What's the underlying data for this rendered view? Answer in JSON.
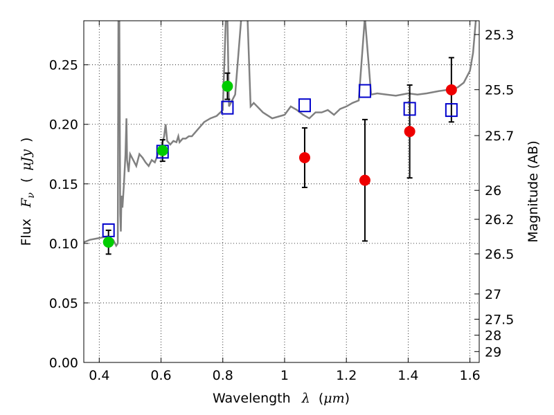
{
  "chart_data": {
    "type": "scatter",
    "xlabel": {
      "text": "Wavelength",
      "symbol": "λ",
      "unit_open": "(",
      "unit": "μm",
      "unit_close": ")"
    },
    "ylabel": {
      "text": "Flux",
      "symbol": "F",
      "subscript": "ν",
      "unit_open": "(",
      "unit": "μJy",
      "unit_close": ")"
    },
    "y2label": "Magnitude (AB)",
    "xlim": [
      0.35,
      1.63
    ],
    "ylim": [
      0.0,
      0.287
    ],
    "grid": true,
    "x_ticks": [
      {
        "value": 0.4,
        "label": "0.4"
      },
      {
        "value": 0.6,
        "label": "0.6"
      },
      {
        "value": 0.8,
        "label": "0.8"
      },
      {
        "value": 1.0,
        "label": "1"
      },
      {
        "value": 1.2,
        "label": "1.2"
      },
      {
        "value": 1.4,
        "label": "1.4"
      },
      {
        "value": 1.6,
        "label": "1.6"
      }
    ],
    "y_ticks": [
      {
        "value": 0.0,
        "label": "0.00"
      },
      {
        "value": 0.05,
        "label": "0.05"
      },
      {
        "value": 0.1,
        "label": "0.10"
      },
      {
        "value": 0.15,
        "label": "0.15"
      },
      {
        "value": 0.2,
        "label": "0.20"
      },
      {
        "value": 0.25,
        "label": "0.25"
      }
    ],
    "y2_ticks": [
      {
        "value": 25.3,
        "label": "25.3"
      },
      {
        "value": 25.5,
        "label": "25.5"
      },
      {
        "value": 25.7,
        "label": "25.7"
      },
      {
        "value": 26.0,
        "label": "26"
      },
      {
        "value": 26.2,
        "label": "26.2"
      },
      {
        "value": 26.5,
        "label": "26.5"
      },
      {
        "value": 27.0,
        "label": "27"
      },
      {
        "value": 27.5,
        "label": "27.5"
      },
      {
        "value": 28.0,
        "label": "28"
      },
      {
        "value": 29.0,
        "label": "29"
      }
    ],
    "colors": {
      "spectrum": "#808080",
      "model_squares": "#0000cc",
      "detected": "#00cc00",
      "measured": "#ee0000",
      "errorbar": "#000000",
      "grid": "#000000"
    },
    "spectrum": {
      "x": [
        0.35,
        0.37,
        0.39,
        0.41,
        0.43,
        0.445,
        0.455,
        0.46,
        0.462,
        0.465,
        0.468,
        0.47,
        0.472,
        0.475,
        0.48,
        0.485,
        0.488,
        0.49,
        0.495,
        0.5,
        0.51,
        0.52,
        0.53,
        0.54,
        0.55,
        0.56,
        0.57,
        0.58,
        0.59,
        0.6,
        0.61,
        0.615,
        0.62,
        0.63,
        0.64,
        0.65,
        0.656,
        0.66,
        0.67,
        0.68,
        0.69,
        0.7,
        0.72,
        0.74,
        0.76,
        0.78,
        0.8,
        0.81,
        0.815,
        0.82,
        0.83,
        0.84,
        0.86,
        0.88,
        0.89,
        0.9,
        0.93,
        0.96,
        1.0,
        1.02,
        1.04,
        1.06,
        1.08,
        1.1,
        1.12,
        1.14,
        1.16,
        1.18,
        1.2,
        1.22,
        1.24,
        1.26,
        1.28,
        1.3,
        1.33,
        1.36,
        1.4,
        1.43,
        1.46,
        1.5,
        1.53,
        1.56,
        1.58,
        1.6,
        1.61,
        1.62,
        1.63
      ],
      "y": [
        0.101,
        0.103,
        0.104,
        0.105,
        0.106,
        0.103,
        0.098,
        0.1,
        0.29,
        0.29,
        0.125,
        0.11,
        0.14,
        0.13,
        0.15,
        0.175,
        0.205,
        0.17,
        0.16,
        0.175,
        0.17,
        0.165,
        0.175,
        0.172,
        0.168,
        0.165,
        0.17,
        0.168,
        0.175,
        0.18,
        0.19,
        0.2,
        0.186,
        0.183,
        0.186,
        0.185,
        0.19,
        0.185,
        0.188,
        0.188,
        0.19,
        0.19,
        0.196,
        0.202,
        0.205,
        0.207,
        0.212,
        0.29,
        0.29,
        0.215,
        0.22,
        0.225,
        0.29,
        0.29,
        0.215,
        0.218,
        0.21,
        0.205,
        0.208,
        0.215,
        0.212,
        0.208,
        0.205,
        0.21,
        0.21,
        0.212,
        0.208,
        0.213,
        0.215,
        0.218,
        0.22,
        0.29,
        0.225,
        0.226,
        0.225,
        0.224,
        0.226,
        0.225,
        0.226,
        0.228,
        0.229,
        0.231,
        0.235,
        0.245,
        0.26,
        0.29,
        0.29
      ]
    },
    "series": [
      {
        "marker": "square",
        "x": [
          0.43,
          0.605,
          0.815,
          1.065,
          1.26,
          1.405,
          1.54
        ],
        "y": [
          0.111,
          0.177,
          0.214,
          0.216,
          0.228,
          0.213,
          0.212
        ]
      },
      {
        "marker": "circle",
        "x": [
          0.43,
          0.605,
          0.815
        ],
        "y": [
          0.101,
          0.178,
          0.232
        ],
        "yerr": [
          0.01,
          0.009,
          0.011
        ]
      },
      {
        "marker": "circle",
        "x": [
          1.065,
          1.26,
          1.405,
          1.54
        ],
        "y": [
          0.172,
          0.153,
          0.194,
          0.229
        ],
        "yerr": [
          0.025,
          0.051,
          0.039,
          0.027
        ]
      }
    ]
  }
}
